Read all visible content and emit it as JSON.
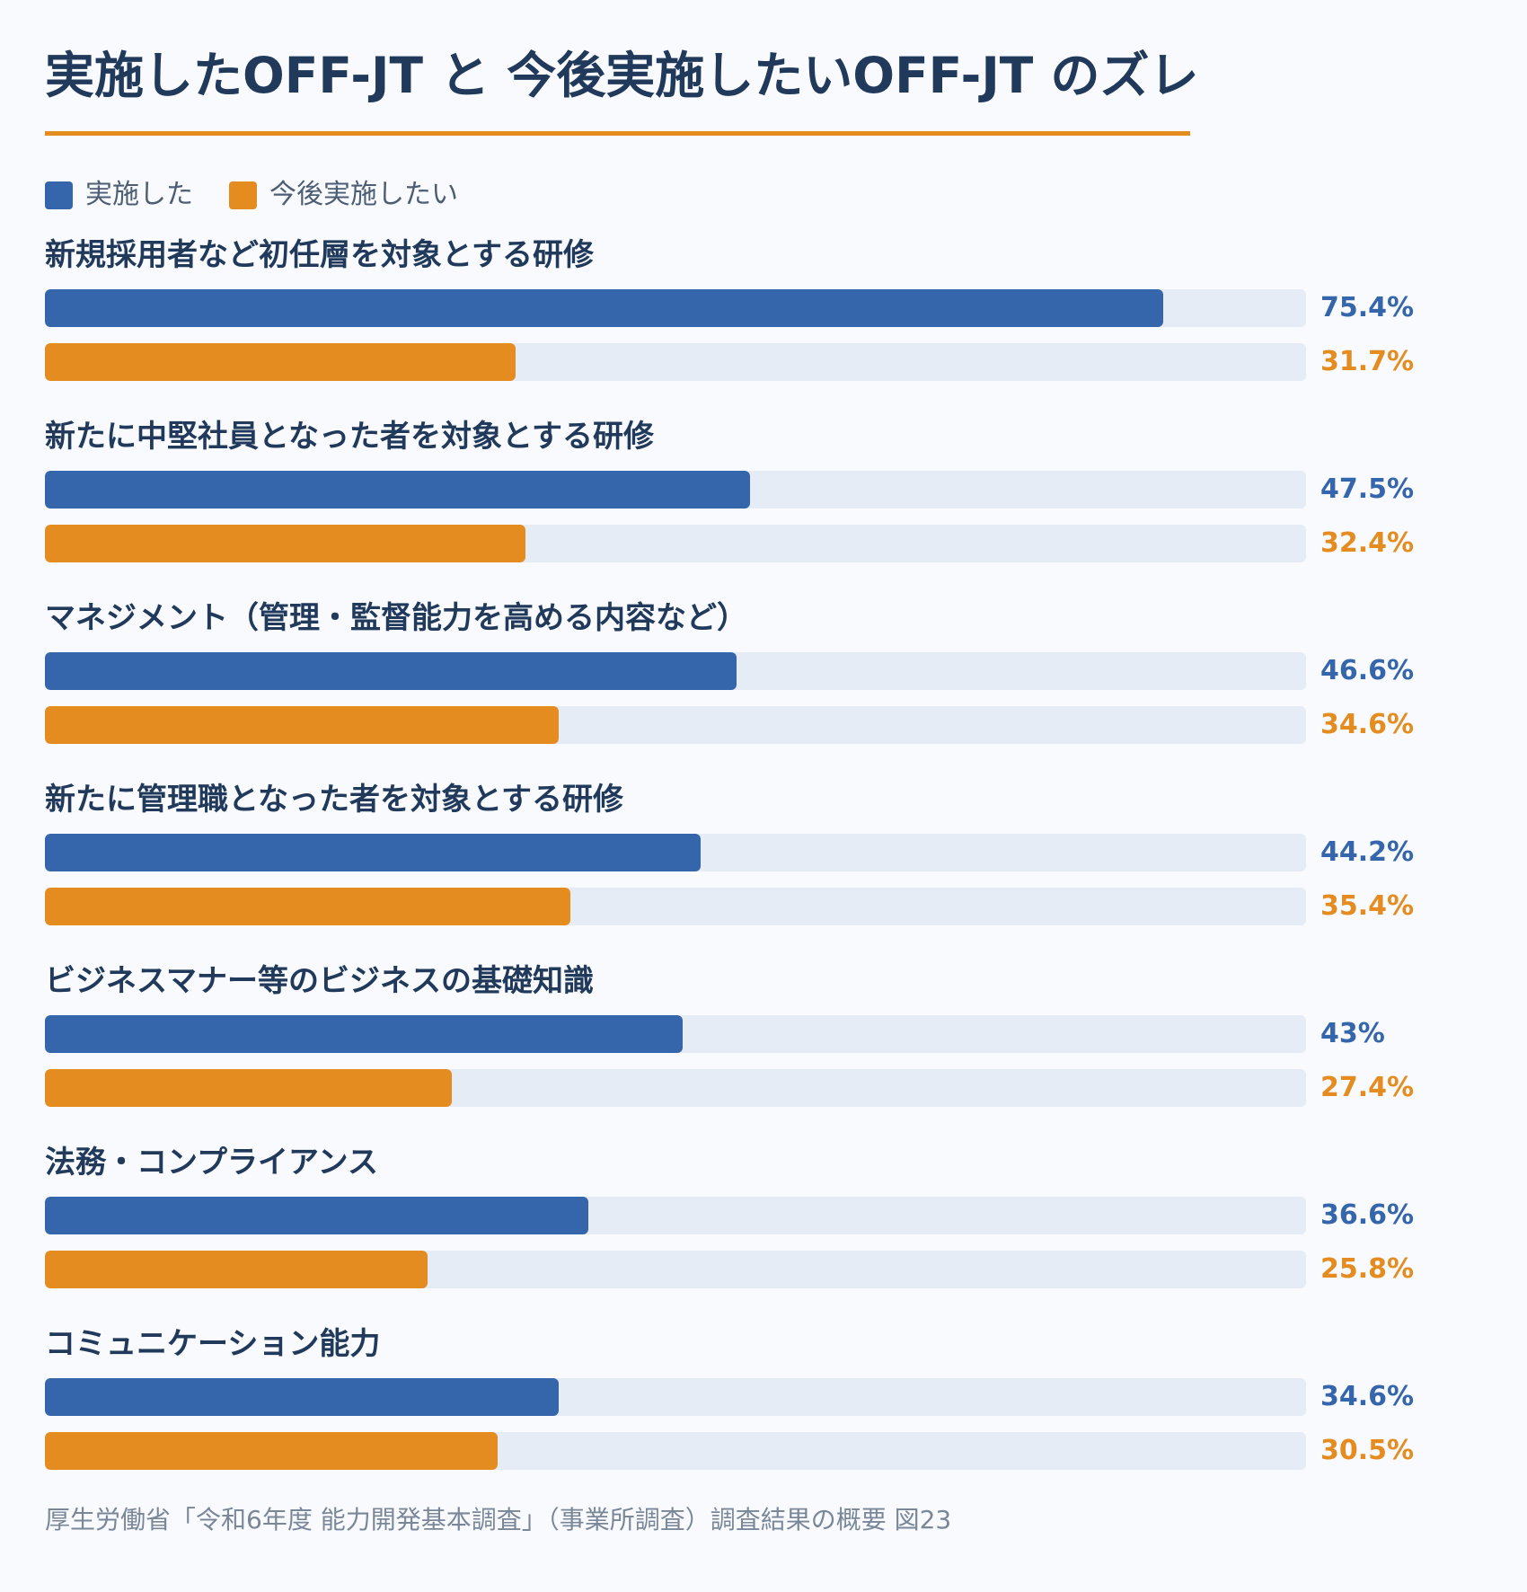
{
  "title": "実施したOFF-JT と 今後実施したいOFF-JT のズレ",
  "source": "厚生労働省「令和6年度 能力開発基本調査」（事業所調査）調査結果の概要 図23",
  "colors": {
    "implemented": "#3566ab",
    "future": "#e58c21",
    "track": "#e5ecf5"
  },
  "legend": [
    {
      "label": "実施した",
      "color": "#3566ab"
    },
    {
      "label": "今後実施したい",
      "color": "#e58c21"
    }
  ],
  "chart_data": {
    "type": "bar",
    "orientation": "horizontal",
    "title": "実施したOFF-JT と 今後実施したいOFF-JT のズレ",
    "xlim": [
      0,
      85
    ],
    "legend_position": "top-left",
    "categories": [
      "新規採用者など初任層を対象とする研修",
      "新たに中堅社員となった者を対象とする研修",
      "マネジメント（管理・監督能力を高める内容など）",
      "新たに管理職となった者を対象とする研修",
      "ビジネスマナー等のビジネスの基礎知識",
      "法務・コンプライアンス",
      "コミュニケーション能力"
    ],
    "series": [
      {
        "name": "実施した",
        "color": "#3566ab",
        "values": [
          75.4,
          47.5,
          46.6,
          44.2,
          43,
          36.6,
          34.6
        ],
        "labels": [
          "75.4%",
          "47.5%",
          "46.6%",
          "44.2%",
          "43%",
          "36.6%",
          "34.6%"
        ]
      },
      {
        "name": "今後実施したい",
        "color": "#e58c21",
        "values": [
          31.7,
          32.4,
          34.6,
          35.4,
          27.4,
          25.8,
          30.5
        ],
        "labels": [
          "31.7%",
          "32.4%",
          "34.6%",
          "35.4%",
          "27.4%",
          "25.8%",
          "30.5%"
        ]
      }
    ]
  }
}
